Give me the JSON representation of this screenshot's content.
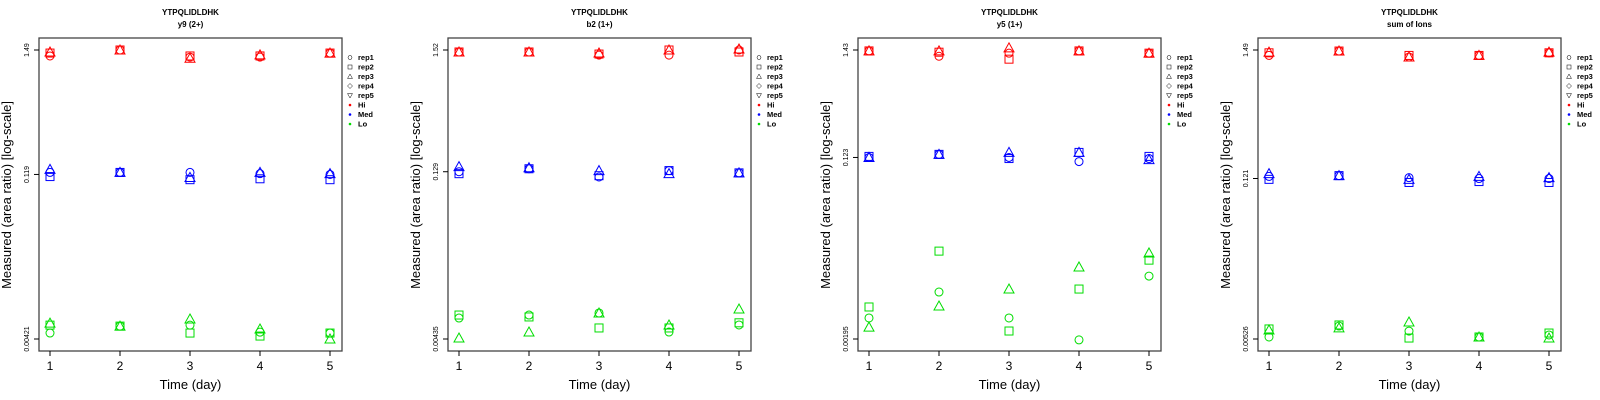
{
  "colors": {
    "Hi": "#ff0000",
    "Med": "#0000ff",
    "Lo": "#00dd00"
  },
  "legend": {
    "reps": [
      {
        "label": "rep1",
        "shape": "circle"
      },
      {
        "label": "rep2",
        "shape": "square"
      },
      {
        "label": "rep3",
        "shape": "triangle-up"
      },
      {
        "label": "rep4",
        "shape": "diamond"
      },
      {
        "label": "rep5",
        "shape": "triangle-down"
      }
    ],
    "levels": [
      {
        "label": "Hi",
        "color": "#ff0000"
      },
      {
        "label": "Med",
        "color": "#0000ff"
      },
      {
        "label": "Lo",
        "color": "#00dd00"
      }
    ]
  },
  "chart_data": [
    {
      "type": "scatter",
      "title": "YTPQLIDLDHK",
      "subtitle": "y9 (2+)",
      "xlabel": "Time (day)",
      "ylabel": "Measured (area ratio) [log-scale]",
      "x": [
        1,
        2,
        3,
        4,
        5
      ],
      "yscale": "log",
      "yticks": [
        {
          "value": 1.49,
          "label": "1.49"
        },
        {
          "value": 0.119,
          "label": "0.119"
        },
        {
          "value": 0.00421,
          "label": "0.00421"
        }
      ],
      "ylim": [
        0.00421,
        1.49
      ],
      "series": [
        {
          "level": "Hi",
          "rep": "rep1",
          "values": [
            1.32,
            1.49,
            1.29,
            1.29,
            1.4
          ]
        },
        {
          "level": "Hi",
          "rep": "rep2",
          "values": [
            1.4,
            1.49,
            1.32,
            1.32,
            1.4
          ]
        },
        {
          "level": "Hi",
          "rep": "rep3",
          "values": [
            1.43,
            1.49,
            1.26,
            1.35,
            1.4
          ]
        },
        {
          "level": "Med",
          "rep": "rep1",
          "values": [
            0.124,
            0.124,
            0.124,
            0.121,
            0.119
          ]
        },
        {
          "level": "Med",
          "rep": "rep2",
          "values": [
            0.114,
            0.124,
            0.107,
            0.109,
            0.107
          ]
        },
        {
          "level": "Med",
          "rep": "rep3",
          "values": [
            0.132,
            0.124,
            0.112,
            0.124,
            0.121
          ]
        },
        {
          "level": "Lo",
          "rep": "rep1",
          "values": [
            0.00475,
            0.00547,
            0.00558,
            0.00484,
            0.00475
          ]
        },
        {
          "level": "Lo",
          "rep": "rep2",
          "values": [
            0.00558,
            0.00547,
            0.00475,
            0.00447,
            0.00475
          ]
        },
        {
          "level": "Lo",
          "rep": "rep3",
          "values": [
            0.00581,
            0.00547,
            0.00632,
            0.00516,
            0.00421
          ]
        }
      ]
    },
    {
      "type": "scatter",
      "title": "YTPQLIDLDHK",
      "subtitle": "b2 (1+)",
      "xlabel": "Time (day)",
      "ylabel": "Measured (area ratio) [log-scale]",
      "x": [
        1,
        2,
        3,
        4,
        5
      ],
      "yscale": "log",
      "yticks": [
        {
          "value": 1.52,
          "label": "1.52"
        },
        {
          "value": 0.129,
          "label": "0.129"
        },
        {
          "value": 0.00435,
          "label": "0.00435"
        }
      ],
      "ylim": [
        0.00435,
        1.52
      ],
      "series": [
        {
          "level": "Hi",
          "rep": "rep1",
          "values": [
            1.46,
            1.46,
            1.37,
            1.37,
            1.52
          ]
        },
        {
          "level": "Hi",
          "rep": "rep2",
          "values": [
            1.46,
            1.46,
            1.4,
            1.52,
            1.46
          ]
        },
        {
          "level": "Hi",
          "rep": "rep3",
          "values": [
            1.46,
            1.46,
            1.43,
            1.52,
            1.55
          ]
        },
        {
          "level": "Med",
          "rep": "rep1",
          "values": [
            0.129,
            0.137,
            0.116,
            0.132,
            0.126
          ]
        },
        {
          "level": "Med",
          "rep": "rep2",
          "values": [
            0.124,
            0.137,
            0.119,
            0.132,
            0.126
          ]
        },
        {
          "level": "Med",
          "rep": "rep3",
          "values": [
            0.143,
            0.14,
            0.132,
            0.124,
            0.126
          ]
        },
        {
          "level": "Lo",
          "rep": "rep1",
          "values": [
            0.00665,
            0.00707,
            0.00737,
            0.00501,
            0.00578
          ]
        },
        {
          "level": "Lo",
          "rep": "rep2",
          "values": [
            0.00707,
            0.0068,
            0.00544,
            0.00544,
            0.00604
          ]
        },
        {
          "level": "Lo",
          "rep": "rep3",
          "values": [
            0.00444,
            0.00501,
            0.00737,
            0.00578,
            0.00799
          ]
        }
      ]
    },
    {
      "type": "scatter",
      "title": "YTPQLIDLDHK",
      "subtitle": "y5 (1+)",
      "xlabel": "Time (day)",
      "ylabel": "Measured (area ratio) [log-scale]",
      "x": [
        1,
        2,
        3,
        4,
        5
      ],
      "yscale": "log",
      "yticks": [
        {
          "value": 1.43,
          "label": "1.43"
        },
        {
          "value": 0.123,
          "label": "0.123"
        },
        {
          "value": 0.00195,
          "label": "0.00195"
        }
      ],
      "ylim": [
        0.00195,
        1.43
      ],
      "series": [
        {
          "level": "Hi",
          "rep": "rep1",
          "values": [
            1.4,
            1.24,
            1.33,
            1.4,
            1.33
          ]
        },
        {
          "level": "Hi",
          "rep": "rep2",
          "values": [
            1.4,
            1.36,
            1.16,
            1.4,
            1.33
          ]
        },
        {
          "level": "Hi",
          "rep": "rep3",
          "values": [
            1.4,
            1.4,
            1.5,
            1.4,
            1.33
          ]
        },
        {
          "level": "Med",
          "rep": "rep1",
          "values": [
            0.123,
            0.132,
            0.123,
            0.112,
            0.12
          ]
        },
        {
          "level": "Med",
          "rep": "rep2",
          "values": [
            0.126,
            0.132,
            0.12,
            0.138,
            0.126
          ]
        },
        {
          "level": "Med",
          "rep": "rep3",
          "values": [
            0.123,
            0.132,
            0.138,
            0.138,
            0.117
          ]
        },
        {
          "level": "Lo",
          "rep": "rep1",
          "values": [
            0.00315,
            0.0057,
            0.00315,
            0.00191,
            0.0082
          ]
        },
        {
          "level": "Lo",
          "rep": "rep2",
          "values": [
            0.00405,
            0.0145,
            0.00234,
            0.0061,
            0.0118
          ]
        },
        {
          "level": "Lo",
          "rep": "rep3",
          "values": [
            0.00256,
            0.00414,
            0.0061,
            0.0101,
            0.0139
          ]
        }
      ]
    },
    {
      "type": "scatter",
      "title": "YTPQLIDLDHK",
      "subtitle": "sum of Ions",
      "xlabel": "Time (day)",
      "ylabel": "Measured (area ratio) [log-scale]",
      "x": [
        1,
        2,
        3,
        4,
        5
      ],
      "yscale": "log",
      "yticks": [
        {
          "value": 1.49,
          "label": "1.49"
        },
        {
          "value": 0.121,
          "label": "0.121"
        },
        {
          "value": 0.00526,
          "label": "0.00526"
        }
      ],
      "ylim": [
        0.00526,
        1.49
      ],
      "series": [
        {
          "level": "Hi",
          "rep": "rep1",
          "values": [
            1.34,
            1.46,
            1.3,
            1.34,
            1.41
          ]
        },
        {
          "level": "Hi",
          "rep": "rep2",
          "values": [
            1.41,
            1.46,
            1.34,
            1.34,
            1.41
          ]
        },
        {
          "level": "Hi",
          "rep": "rep3",
          "values": [
            1.43,
            1.46,
            1.3,
            1.34,
            1.43
          ]
        },
        {
          "level": "Med",
          "rep": "rep1",
          "values": [
            0.126,
            0.128,
            0.123,
            0.121,
            0.121
          ]
        },
        {
          "level": "Med",
          "rep": "rep2",
          "values": [
            0.119,
            0.128,
            0.112,
            0.114,
            0.112
          ]
        },
        {
          "level": "Med",
          "rep": "rep3",
          "values": [
            0.133,
            0.128,
            0.119,
            0.126,
            0.123
          ]
        },
        {
          "level": "Lo",
          "rep": "rep1",
          "values": [
            0.00547,
            0.00678,
            0.00614,
            0.00547,
            0.00569
          ]
        },
        {
          "level": "Lo",
          "rep": "rep2",
          "values": [
            0.0064,
            0.00692,
            0.00536,
            0.00547,
            0.00591
          ]
        },
        {
          "level": "Lo",
          "rep": "rep3",
          "values": [
            0.00627,
            0.00654,
            0.00733,
            0.00547,
            0.00536
          ]
        }
      ]
    }
  ]
}
